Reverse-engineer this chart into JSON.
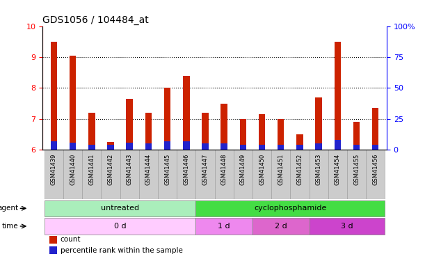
{
  "title": "GDS1056 / 104484_at",
  "samples": [
    "GSM41439",
    "GSM41440",
    "GSM41441",
    "GSM41442",
    "GSM41443",
    "GSM41444",
    "GSM41445",
    "GSM41446",
    "GSM41447",
    "GSM41448",
    "GSM41449",
    "GSM41450",
    "GSM41451",
    "GSM41452",
    "GSM41453",
    "GSM41454",
    "GSM41455",
    "GSM41456"
  ],
  "count_values": [
    9.5,
    9.05,
    7.2,
    6.25,
    7.65,
    7.2,
    8.0,
    8.4,
    7.2,
    7.5,
    7.0,
    7.15,
    7.0,
    6.5,
    7.7,
    9.5,
    6.9,
    7.35
  ],
  "percentile_values": [
    6.28,
    6.24,
    6.16,
    6.16,
    6.24,
    6.2,
    6.28,
    6.28,
    6.2,
    6.2,
    6.16,
    6.16,
    6.16,
    6.16,
    6.2,
    6.32,
    6.16,
    6.16
  ],
  "ylim_left": [
    6,
    10
  ],
  "ylim_right": [
    0,
    100
  ],
  "yticks_left": [
    6,
    7,
    8,
    9,
    10
  ],
  "yticks_right": [
    0,
    25,
    50,
    75,
    100
  ],
  "bar_color_red": "#cc2200",
  "bar_color_blue": "#2222cc",
  "agent_labels": [
    {
      "label": "untreated",
      "start": 0,
      "end": 8,
      "color": "#aaeebb"
    },
    {
      "label": "cyclophosphamide",
      "start": 8,
      "end": 18,
      "color": "#44dd44"
    }
  ],
  "time_labels": [
    {
      "label": "0 d",
      "start": 0,
      "end": 8,
      "color": "#ffccff"
    },
    {
      "label": "1 d",
      "start": 8,
      "end": 11,
      "color": "#ee88ee"
    },
    {
      "label": "2 d",
      "start": 11,
      "end": 14,
      "color": "#dd66cc"
    },
    {
      "label": "3 d",
      "start": 14,
      "end": 18,
      "color": "#cc44cc"
    }
  ],
  "legend_items": [
    {
      "label": "count",
      "color": "#cc2200"
    },
    {
      "label": "percentile rank within the sample",
      "color": "#2222cc"
    }
  ],
  "background_color": "#ffffff",
  "plot_bg": "#ffffff",
  "bar_width": 0.35,
  "base_value": 6.0,
  "gridline_yticks": [
    7,
    8,
    9
  ],
  "xticklabel_bg": "#cccccc",
  "xticklabel_fontsize": 6.0,
  "title_fontsize": 10
}
